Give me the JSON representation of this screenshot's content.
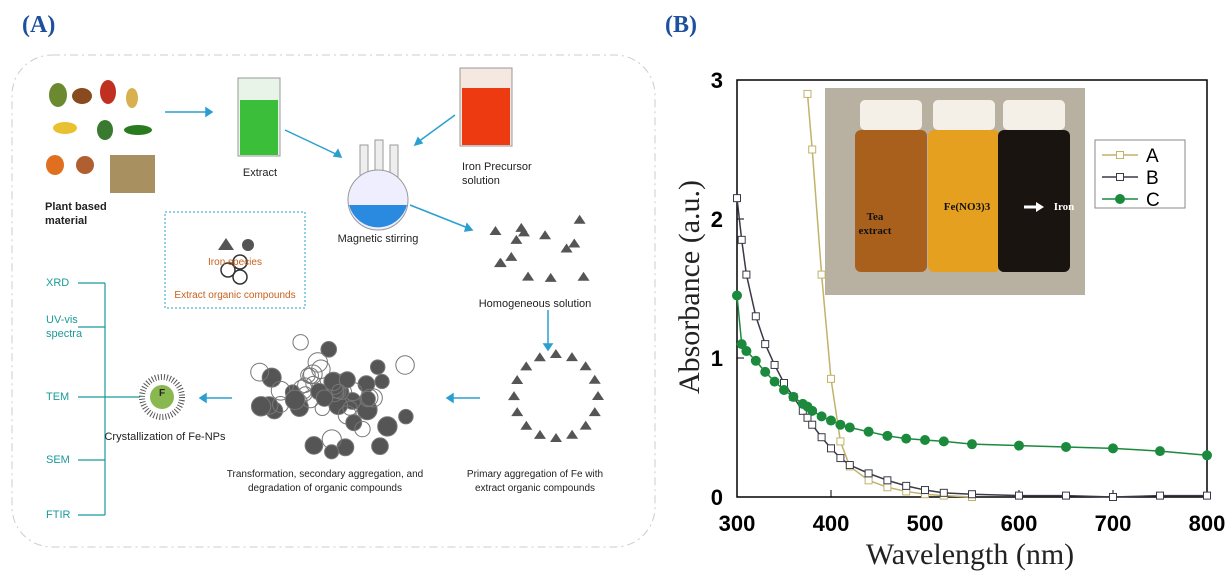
{
  "panel_a": {
    "label": "(A)",
    "plant": "Plant based material",
    "extract": "Extract",
    "precursor": "Iron Precursor solution",
    "stirring": "Magnetic stirring",
    "homogeneous": "Homogeneous solution",
    "legend_iron": "Iron species",
    "legend_organic": "Extract organic compounds",
    "primary": "Primary aggregation of Fe with extract organic compounds",
    "transformation": "Transformation, secondary aggregation, and degradation of organic compounds",
    "crystallization": "Crystallization of Fe-NPs",
    "np_symbol": "F",
    "techniques": [
      "XRD",
      "UV-vis spectra",
      "TEM",
      "SEM",
      "FTIR"
    ]
  },
  "chart_data": {
    "type": "line",
    "panel_label": "(B)",
    "x_label": "Wavelength (nm)",
    "y_label": "Absorbance (a.u.)",
    "x": [
      300,
      305,
      310,
      320,
      330,
      340,
      350,
      360,
      370,
      375,
      380,
      390,
      400,
      410,
      420,
      440,
      460,
      480,
      500,
      520,
      550,
      600,
      650,
      700,
      750,
      800
    ],
    "series": [
      {
        "name": "A",
        "color": "#c2b26a",
        "marker": "open-square",
        "values": [
          null,
          null,
          null,
          null,
          null,
          null,
          null,
          null,
          null,
          2.9,
          2.5,
          1.6,
          0.85,
          0.4,
          0.22,
          0.12,
          0.07,
          0.04,
          0.02,
          0.01,
          0,
          null,
          null,
          null,
          null,
          null
        ]
      },
      {
        "name": "B",
        "color": "#3a3a48",
        "marker": "open-square",
        "values": [
          2.15,
          1.85,
          1.6,
          1.3,
          1.1,
          0.95,
          0.82,
          0.72,
          0.62,
          0.57,
          0.52,
          0.43,
          0.35,
          0.28,
          0.23,
          0.17,
          0.12,
          0.08,
          0.05,
          0.03,
          0.02,
          0.01,
          0.01,
          0,
          0.01,
          0.01
        ]
      },
      {
        "name": "C",
        "color": "#1b8a3c",
        "marker": "filled-circle",
        "values": [
          1.45,
          1.1,
          1.05,
          0.98,
          0.9,
          0.83,
          0.77,
          0.72,
          0.67,
          0.65,
          0.62,
          0.58,
          0.55,
          0.52,
          0.5,
          0.47,
          0.44,
          0.42,
          0.41,
          0.4,
          0.38,
          0.37,
          0.36,
          0.35,
          0.33,
          0.3
        ]
      }
    ],
    "xlim": [
      300,
      800
    ],
    "xticks": [
      300,
      400,
      500,
      600,
      700,
      800
    ],
    "ylim": [
      0,
      3
    ],
    "yticks": [
      0,
      1,
      2,
      3
    ],
    "legend": "upper-right",
    "inset_labels": [
      "Tea extract",
      "Fe(NO3)3",
      "Iron"
    ]
  }
}
